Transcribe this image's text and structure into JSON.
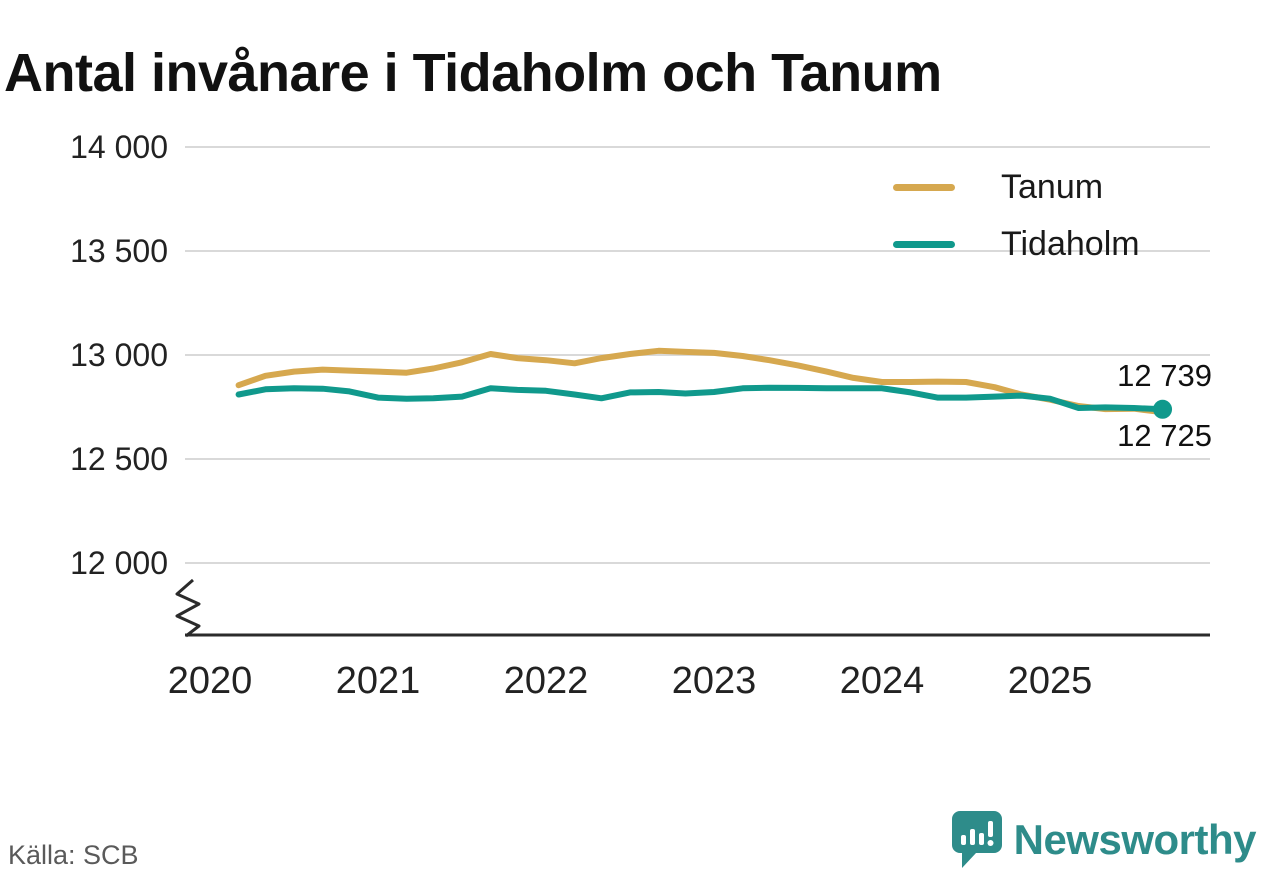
{
  "title": "Antal invånare i Tidaholm och Tanum",
  "source": "Källa: SCB",
  "brand_name": "Newsworthy",
  "colors": {
    "tanum": "#d6a84f",
    "tidaholm": "#10998c",
    "grid": "#d9d9d9",
    "axis": "#2b2b2b",
    "brand_teal": "#2e8c8a"
  },
  "end_labels": {
    "tidaholm": "12 739",
    "tanum": "12 725"
  },
  "chart_data": {
    "type": "line",
    "title": "Antal invånare i Tidaholm och Tanum",
    "xlabel": "",
    "ylabel": "",
    "ylim": [
      12000,
      14000
    ],
    "xlim": [
      2019.85,
      2025.95
    ],
    "grid": "horizontal",
    "axis_break": true,
    "legend_position": "top-right",
    "yticks": [
      {
        "value": 12000,
        "label": "12 000"
      },
      {
        "value": 12500,
        "label": "12 500"
      },
      {
        "value": 13000,
        "label": "13 000"
      },
      {
        "value": 13500,
        "label": "13 500"
      },
      {
        "value": 14000,
        "label": "14 000"
      }
    ],
    "xticks": [
      {
        "value": 2020,
        "label": "2020"
      },
      {
        "value": 2021,
        "label": "2021"
      },
      {
        "value": 2022,
        "label": "2022"
      },
      {
        "value": 2023,
        "label": "2023"
      },
      {
        "value": 2024,
        "label": "2024"
      },
      {
        "value": 2025,
        "label": "2025"
      }
    ],
    "x_years": [
      2020.17,
      2020.33,
      2020.5,
      2020.67,
      2020.83,
      2021.0,
      2021.17,
      2021.33,
      2021.5,
      2021.67,
      2021.83,
      2022.0,
      2022.17,
      2022.33,
      2022.5,
      2022.67,
      2022.83,
      2023.0,
      2023.17,
      2023.33,
      2023.5,
      2023.67,
      2023.83,
      2024.0,
      2024.17,
      2024.33,
      2024.5,
      2024.67,
      2024.83,
      2025.0,
      2025.17,
      2025.33,
      2025.5,
      2025.67
    ],
    "series": [
      {
        "name": "Tanum",
        "color": "#d6a84f",
        "end_dot": false,
        "end_value": 12725,
        "values": [
          12855,
          12900,
          12920,
          12930,
          12925,
          12920,
          12915,
          12935,
          12965,
          13005,
          12985,
          12975,
          12960,
          12985,
          13005,
          13020,
          13015,
          13010,
          12995,
          12975,
          12950,
          12920,
          12890,
          12870,
          12870,
          12872,
          12870,
          12845,
          12810,
          12785,
          12755,
          12740,
          12742,
          12725
        ]
      },
      {
        "name": "Tidaholm",
        "color": "#10998c",
        "end_dot": true,
        "end_value": 12739,
        "values": [
          12810,
          12835,
          12840,
          12838,
          12825,
          12795,
          12790,
          12792,
          12800,
          12840,
          12832,
          12828,
          12810,
          12792,
          12820,
          12822,
          12815,
          12822,
          12840,
          12843,
          12842,
          12840,
          12840,
          12840,
          12820,
          12795,
          12795,
          12800,
          12805,
          12790,
          12745,
          12748,
          12745,
          12739
        ]
      }
    ]
  }
}
